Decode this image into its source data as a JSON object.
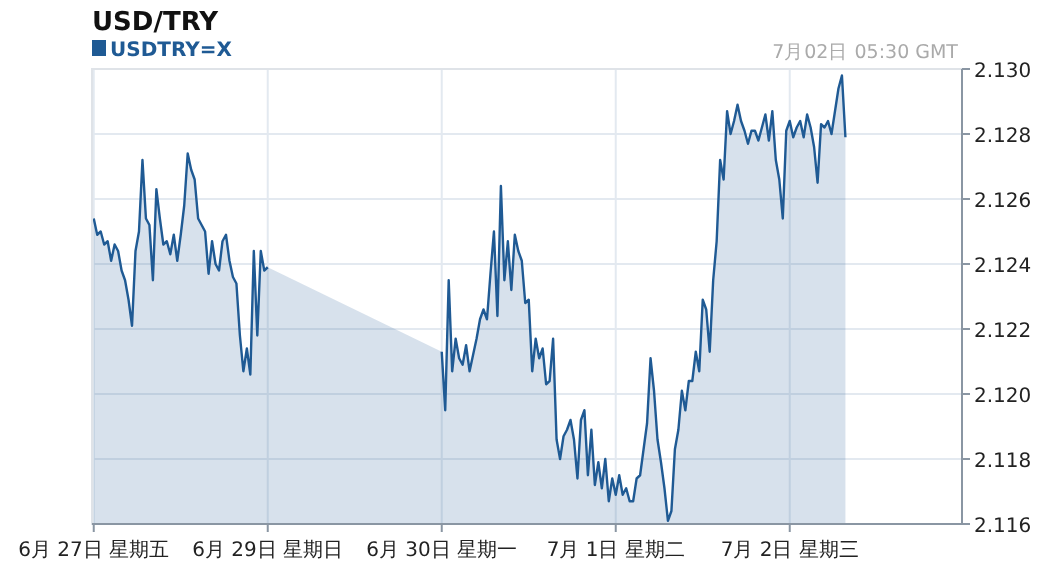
{
  "chart_data": {
    "type": "area",
    "title": "USD/TRY",
    "annotations": [
      "7月02日 05:30 GMT"
    ],
    "legend": "top left",
    "grid": true,
    "categories": [
      "6月 27日 星期五",
      null,
      null,
      null,
      null,
      null,
      null,
      null,
      null,
      null,
      null,
      null,
      null,
      null,
      null,
      null,
      null,
      null,
      null,
      null,
      null,
      null,
      null,
      null,
      null,
      null,
      null,
      null,
      null,
      null,
      null,
      null,
      null,
      null,
      null,
      null,
      null,
      null,
      null,
      null,
      null,
      null,
      null,
      null,
      null,
      null,
      null,
      null,
      null,
      null,
      "6月 29日 星期日",
      null,
      null,
      null,
      null,
      null,
      null,
      null,
      null,
      null,
      null,
      null,
      null,
      null,
      null,
      null,
      null,
      null,
      null,
      null,
      null,
      null,
      null,
      null,
      null,
      null,
      null,
      null,
      null,
      null,
      null,
      null,
      null,
      null,
      null,
      null,
      null,
      null,
      null,
      null,
      null,
      null,
      null,
      null,
      null,
      null,
      null,
      null,
      null,
      null,
      "6月 30日 星期一",
      null,
      null,
      null,
      null,
      null,
      null,
      null,
      null,
      null,
      null,
      null,
      null,
      null,
      null,
      null,
      null,
      null,
      null,
      null,
      null,
      null,
      null,
      null,
      null,
      null,
      null,
      null,
      null,
      null,
      null,
      null,
      null,
      null,
      null,
      null,
      null,
      null,
      null,
      null,
      null,
      null,
      null,
      null,
      null,
      null,
      null,
      null,
      null,
      null,
      "7月  1日 星期二",
      null,
      null,
      null,
      null,
      null,
      null,
      null,
      null,
      null,
      null,
      null,
      null,
      null,
      null,
      null,
      null,
      null,
      null,
      null,
      null,
      null,
      null,
      null,
      null,
      null,
      null,
      null,
      null,
      null,
      null,
      null,
      null,
      null,
      null,
      null,
      null,
      null,
      null,
      null,
      null,
      null,
      null,
      null,
      null,
      null,
      null,
      null,
      null,
      null,
      "7月  2日 星期三",
      null,
      null,
      null,
      null,
      null,
      null,
      null,
      null,
      null,
      null,
      null,
      null,
      null,
      null,
      null,
      null,
      null,
      null,
      null,
      null,
      null,
      null,
      null,
      null,
      null,
      null,
      null,
      null,
      null,
      null,
      null,
      null,
      null,
      null,
      null,
      null,
      null,
      null,
      null,
      null,
      null,
      null,
      null,
      null,
      null,
      null,
      null,
      null,
      null
    ],
    "ylim": [
      2.116,
      2.13
    ],
    "yticks": [
      {
        "value": 2.116,
        "label": "2.116"
      },
      {
        "value": 2.118,
        "label": "2.118"
      },
      {
        "value": 2.12,
        "label": "2.120"
      },
      {
        "value": 2.122,
        "label": "2.122"
      },
      {
        "value": 2.124,
        "label": "2.124"
      },
      {
        "value": 2.126,
        "label": "2.126"
      },
      {
        "value": 2.128,
        "label": "2.128"
      },
      {
        "value": 2.13,
        "label": "2.130"
      }
    ],
    "series": [
      {
        "name": "USDTRY=X",
        "color": "#1f5a94",
        "values": [
          2.1254,
          2.1249,
          2.125,
          2.1246,
          2.1247,
          2.1241,
          2.1246,
          2.1244,
          2.1238,
          2.1235,
          2.1229,
          2.1221,
          2.1244,
          2.125,
          2.1272,
          2.1254,
          2.1252,
          2.1235,
          2.1263,
          2.1254,
          2.1246,
          2.1247,
          2.1243,
          2.1249,
          2.1241,
          2.1249,
          2.1258,
          2.1274,
          2.1269,
          2.1266,
          2.1254,
          2.1252,
          2.125,
          2.1237,
          2.1247,
          2.124,
          2.1238,
          2.1247,
          2.1249,
          2.1241,
          2.1236,
          2.1234,
          2.1218,
          2.1207,
          2.1214,
          2.1206,
          2.1244,
          2.1218,
          2.1244,
          2.1238,
          2.1239,
          null,
          null,
          null,
          null,
          null,
          null,
          null,
          null,
          null,
          null,
          null,
          null,
          null,
          null,
          null,
          null,
          null,
          null,
          null,
          null,
          null,
          null,
          null,
          null,
          null,
          null,
          null,
          null,
          null,
          null,
          null,
          null,
          null,
          null,
          null,
          null,
          null,
          null,
          null,
          null,
          null,
          null,
          null,
          null,
          null,
          null,
          null,
          null,
          null,
          2.1213,
          2.1195,
          2.1235,
          2.1207,
          2.1217,
          2.1211,
          2.1209,
          2.1215,
          2.1207,
          2.1212,
          2.1217,
          2.1223,
          2.1226,
          2.1223,
          2.1237,
          2.125,
          2.1224,
          2.1264,
          2.1235,
          2.1247,
          2.1232,
          2.1249,
          2.1244,
          2.1241,
          2.1228,
          2.1229,
          2.1207,
          2.1217,
          2.1211,
          2.1214,
          2.1203,
          2.1204,
          2.1217,
          2.1186,
          2.118,
          2.1187,
          2.1189,
          2.1192,
          2.1186,
          2.1174,
          2.1192,
          2.1195,
          2.1175,
          2.1189,
          2.1172,
          2.1179,
          2.1171,
          2.118,
          2.1167,
          2.1174,
          2.1169,
          2.1175,
          2.1169,
          2.1171,
          2.1167,
          2.1167,
          2.1174,
          2.1175,
          2.1183,
          2.1191,
          2.1211,
          2.1201,
          2.1186,
          2.1179,
          2.1171,
          2.1161,
          2.1164,
          2.1183,
          2.1189,
          2.1201,
          2.1195,
          2.1204,
          2.1204,
          2.1213,
          2.1207,
          2.1229,
          2.1226,
          2.1213,
          2.1235,
          2.1247,
          2.1272,
          2.1266,
          2.1287,
          2.128,
          2.1284,
          2.1289,
          2.1284,
          2.1281,
          2.1277,
          2.1281,
          2.1281,
          2.1278,
          2.1282,
          2.1286,
          2.1278,
          2.1287,
          2.1272,
          2.1266,
          2.1254,
          2.1281,
          2.1284,
          2.1279,
          2.1282,
          2.1284,
          2.1279,
          2.1286,
          2.1282,
          2.1276,
          2.1265,
          2.1283,
          2.1282,
          2.1284,
          2.128,
          2.1287,
          2.1294,
          2.1298,
          2.1279,
          null,
          null,
          null,
          null,
          null,
          null,
          null,
          null,
          null,
          null,
          null,
          null,
          null,
          null,
          null,
          null,
          null,
          null,
          null,
          null,
          null,
          null,
          null,
          null,
          null,
          null,
          null,
          null,
          null,
          null,
          null,
          null,
          null
        ]
      }
    ]
  }
}
